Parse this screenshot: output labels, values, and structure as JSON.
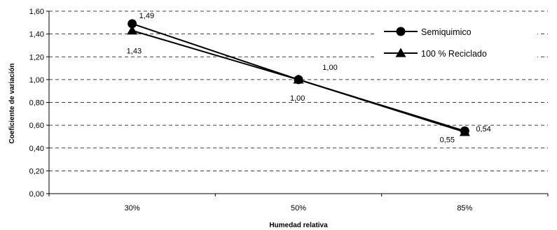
{
  "chart_data": {
    "type": "line",
    "categories": [
      "30%",
      "50%",
      "85%"
    ],
    "ylim": [
      0,
      1.6
    ],
    "ytick_labels": [
      "0,00",
      "0,20",
      "0,40",
      "0,60",
      "0,80",
      "1,00",
      "1,20",
      "1,40",
      "1,60"
    ],
    "grid": "horizontal dashed",
    "xlabel": "Humedad relativa",
    "ylabel": "Coeficiente de variación",
    "legend": "top-right",
    "series": [
      {
        "name": "Semiquimico",
        "marker": "circle",
        "values": [
          1.49,
          1.0,
          0.55
        ],
        "labels": [
          "1,49",
          "1,00",
          "0,55"
        ]
      },
      {
        "name": "100 % Reciclado",
        "marker": "triangle",
        "values": [
          1.43,
          1.0,
          0.54
        ],
        "labels": [
          "1,43",
          "1,00",
          "0,54"
        ]
      }
    ],
    "colors": {
      "line": "#000000",
      "grid": "#000000",
      "background": "#ffffff"
    }
  }
}
